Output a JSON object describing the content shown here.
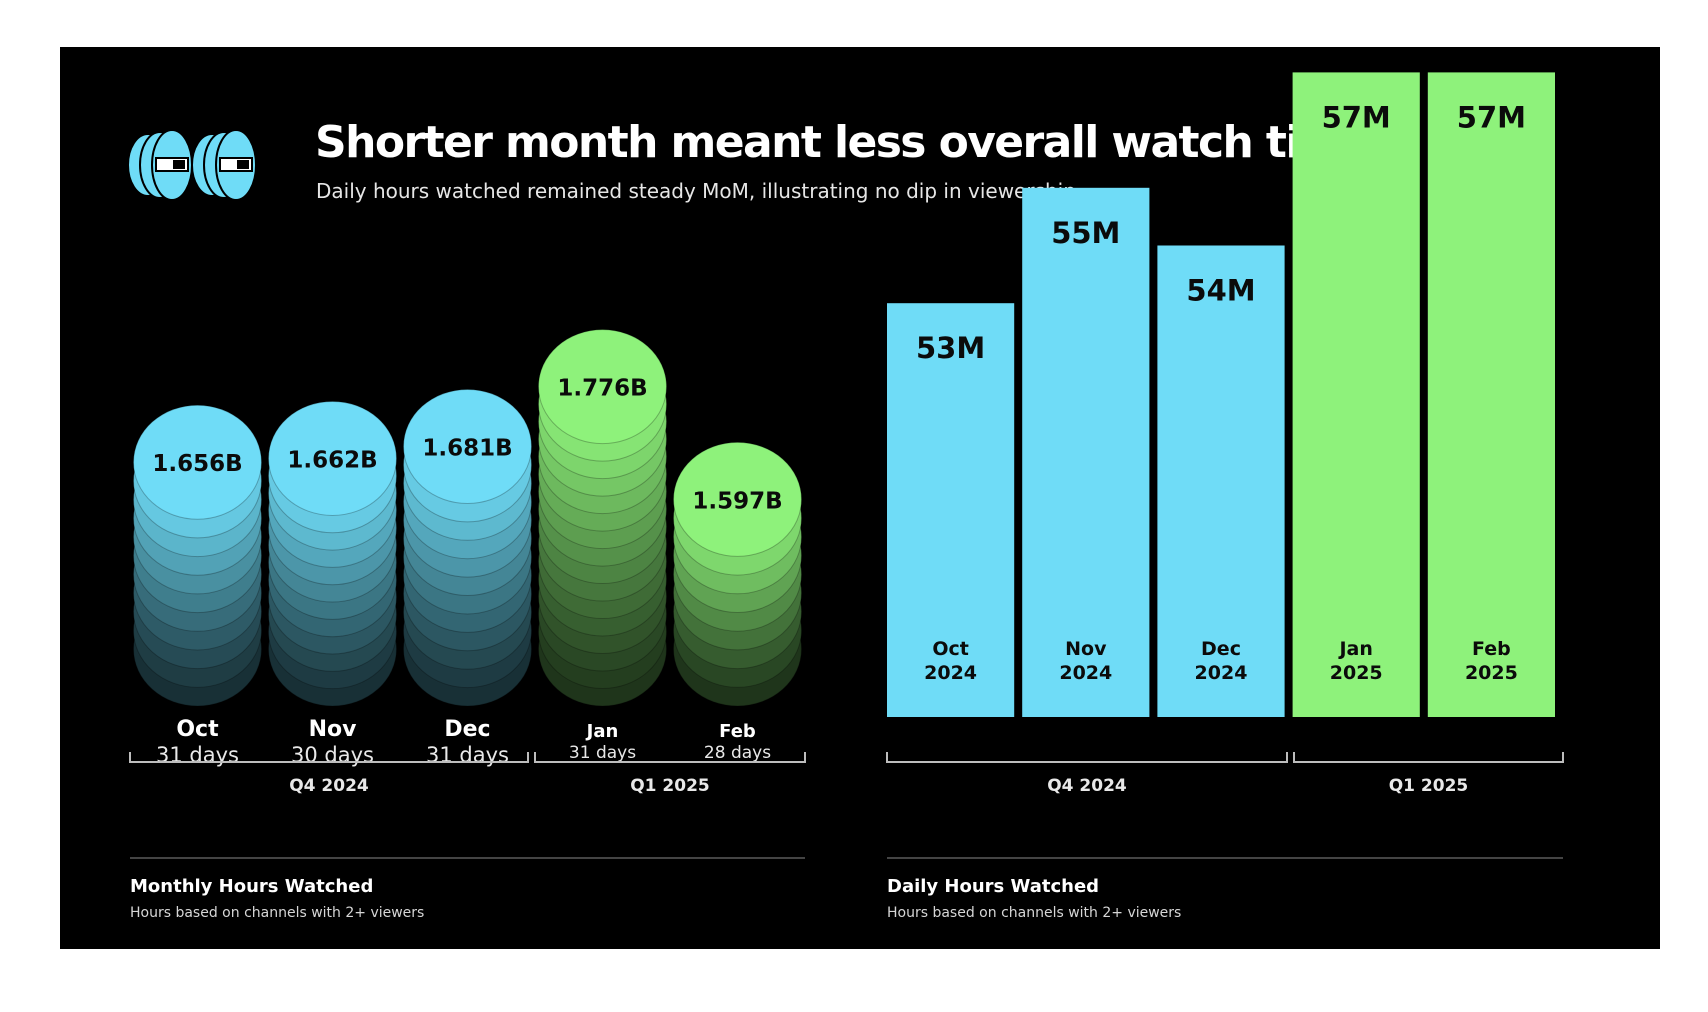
{
  "header": {
    "title": "Shorter month meant less overall watch time",
    "subtitle": "Daily hours watched remained steady MoM, illustrating no dip in viewership",
    "logo_icon": "twin-eyes-logo-icon"
  },
  "colors": {
    "q4": "#6fdcf7",
    "q1": "#8ef27b",
    "background": "#000000"
  },
  "chart_data": [
    {
      "type": "bar",
      "style": "stacked-coins",
      "categories": [
        "Oct",
        "Nov",
        "Dec",
        "Jan",
        "Feb"
      ],
      "days": [
        "31 days",
        "30 days",
        "31 days",
        "31 days",
        "28 days"
      ],
      "values": [
        1.656,
        1.662,
        1.681,
        1.776,
        1.597
      ],
      "value_labels": [
        "1.656B",
        "1.662B",
        "1.681B",
        "1.776B",
        "1.597B"
      ],
      "groups": [
        {
          "label": "Q4 2024",
          "categories": [
            "Oct",
            "Nov",
            "Dec"
          ]
        },
        {
          "label": "Q1 2025",
          "categories": [
            "Jan",
            "Feb"
          ]
        }
      ],
      "footer_title": "Monthly Hours Watched",
      "footer_subtitle": "Hours based on channels with 2+ viewers",
      "grid": false,
      "legend": "none"
    },
    {
      "type": "bar",
      "categories": [
        "Oct",
        "Nov",
        "Dec",
        "Jan",
        "Feb"
      ],
      "years": [
        "2024",
        "2024",
        "2024",
        "2025",
        "2025"
      ],
      "values": [
        53,
        55,
        54,
        57,
        57
      ],
      "value_labels": [
        "53M",
        "55M",
        "54M",
        "57M",
        "57M"
      ],
      "groups": [
        {
          "label": "Q4 2024",
          "categories": [
            "Oct",
            "Nov",
            "Dec"
          ]
        },
        {
          "label": "Q1 2025",
          "categories": [
            "Jan",
            "Feb"
          ]
        }
      ],
      "footer_title": "Daily Hours Watched",
      "footer_subtitle": "Hours based on channels with 2+ viewers",
      "grid": false,
      "legend": "none"
    }
  ]
}
